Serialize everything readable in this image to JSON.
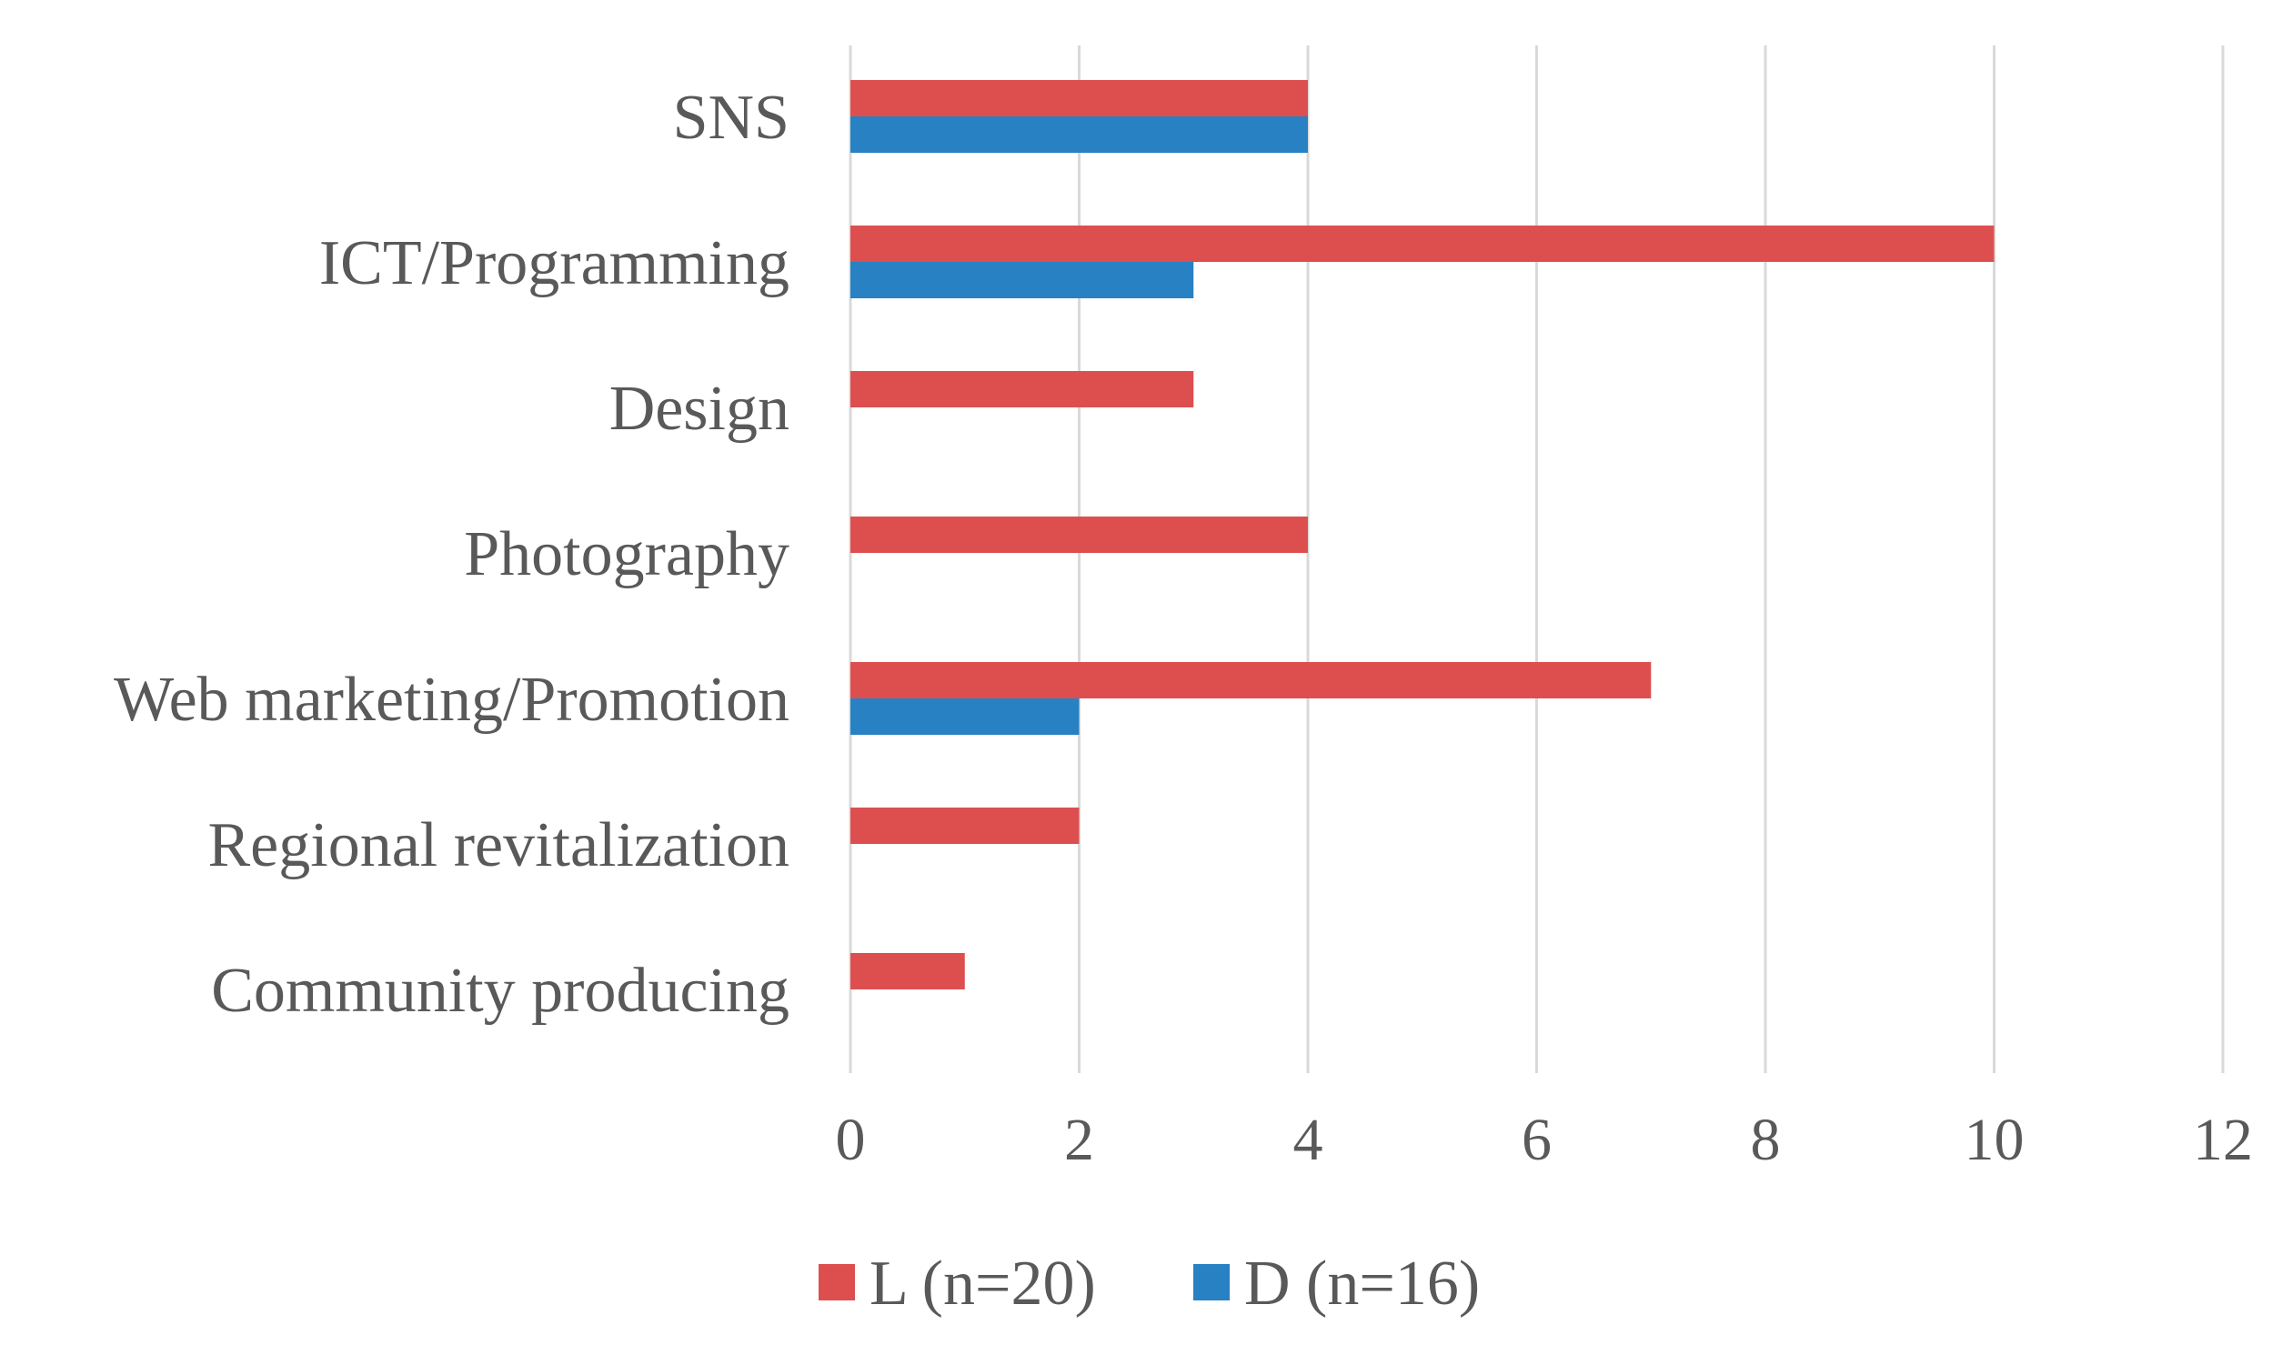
{
  "chart_data": {
    "type": "bar",
    "orientation": "horizontal",
    "title": "",
    "xlabel": "",
    "ylabel": "",
    "categories": [
      "SNS",
      "ICT/Programming",
      "Design",
      "Photography",
      "Web marketing/Promotion",
      "Regional revitalization",
      "Community producing"
    ],
    "series": [
      {
        "name": "L (n=20)",
        "color": "#dd4f4f",
        "values": [
          4,
          10,
          3,
          4,
          7,
          2,
          1
        ]
      },
      {
        "name": "D (n=16)",
        "color": "#2781c3",
        "values": [
          4,
          3,
          0,
          0,
          2,
          0,
          0
        ]
      }
    ],
    "xlim": [
      0,
      12
    ],
    "xticks": [
      0,
      2,
      4,
      6,
      8,
      10,
      12
    ],
    "grid": "vertical",
    "legend_position": "bottom"
  }
}
